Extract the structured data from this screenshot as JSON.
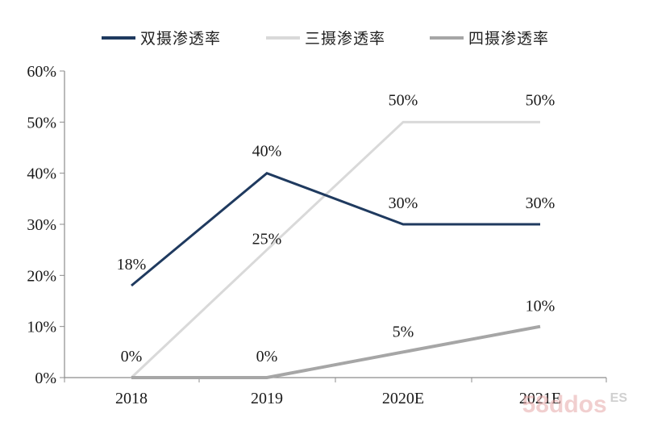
{
  "chart_data": {
    "type": "line",
    "categories": [
      "2018",
      "2019",
      "2020E",
      "2021E"
    ],
    "ylim": [
      0,
      0.6
    ],
    "y_ticks": [
      "0%",
      "10%",
      "20%",
      "30%",
      "40%",
      "50%",
      "60%"
    ],
    "grid": false,
    "legend_position": "top",
    "series": [
      {
        "name": "双摄渗透率",
        "color": "#1f3a5f",
        "values": [
          0.18,
          0.4,
          0.3,
          0.3
        ],
        "labels": [
          "18%",
          "40%",
          "30%",
          "30%"
        ]
      },
      {
        "name": "三摄渗透率",
        "color": "#d9d9d9",
        "values": [
          0.0,
          0.25,
          0.5,
          0.5
        ],
        "labels": [
          "0%",
          "25%",
          "50%",
          "50%"
        ]
      },
      {
        "name": "四摄渗透率",
        "color": "#a6a6a6",
        "values": [
          0.0,
          0.0,
          0.05,
          0.1
        ],
        "labels": [
          "0%",
          "0%",
          "5%",
          "10%"
        ]
      }
    ]
  },
  "watermark": {
    "text": "58ddos",
    "sub": "ES"
  }
}
